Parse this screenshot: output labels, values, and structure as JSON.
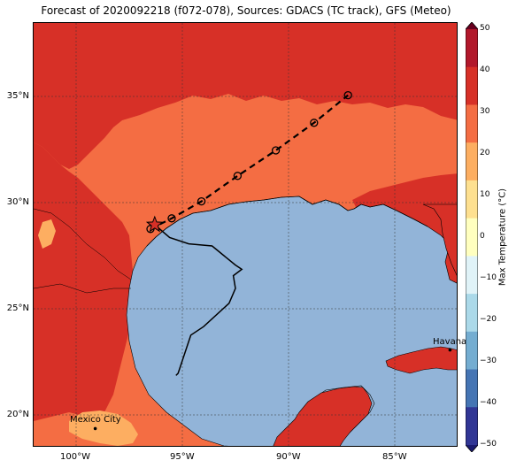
{
  "title": "Forecast of 2020092218 (f072-078), Sources: GDACS (TC track), GFS (Meteo)",
  "map": {
    "lat_labels": [
      "35°N",
      "30°N",
      "25°N",
      "20°N"
    ],
    "lon_labels": [
      "100°W",
      "95°W",
      "90°W",
      "85°W"
    ],
    "cities": [
      {
        "name": "Mexico City"
      },
      {
        "name": "Havana"
      }
    ],
    "colors": {
      "ocean": "#92b4d8",
      "land_30_40": "#d73027",
      "land_20_30": "#f46d43",
      "land_10_20": "#fdae61",
      "track_forecast": "#000000",
      "track_past": "#000000",
      "current_position_marker": "#d73027"
    },
    "track": {
      "forecast_positions": [
        {
          "lon": -96.5,
          "lat": 28.8
        },
        {
          "lon": -95.5,
          "lat": 29.3
        },
        {
          "lon": -94.1,
          "lat": 30.1
        },
        {
          "lon": -92.4,
          "lat": 31.3
        },
        {
          "lon": -90.6,
          "lat": 32.5
        },
        {
          "lon": -88.8,
          "lat": 33.8
        },
        {
          "lon": -87.2,
          "lat": 35.1
        }
      ],
      "current_position": {
        "lon": -96.3,
        "lat": 29.0
      },
      "past_track": [
        {
          "lon": -96.3,
          "lat": 29.0
        },
        {
          "lon": -95.6,
          "lat": 28.4
        },
        {
          "lon": -94.7,
          "lat": 28.1
        },
        {
          "lon": -93.6,
          "lat": 28.0
        },
        {
          "lon": -92.5,
          "lat": 27.1
        },
        {
          "lon": -92.2,
          "lat": 26.9
        },
        {
          "lon": -92.6,
          "lat": 26.6
        },
        {
          "lon": -92.5,
          "lat": 26.0
        },
        {
          "lon": -92.8,
          "lat": 25.3
        },
        {
          "lon": -94.0,
          "lat": 24.2
        },
        {
          "lon": -94.6,
          "lat": 23.8
        },
        {
          "lon": -95.2,
          "lat": 22.0
        },
        {
          "lon": -95.3,
          "lat": 21.9
        }
      ]
    }
  },
  "colorbar": {
    "label": "Max Temperature (°C)",
    "ticks": [
      "50",
      "40",
      "30",
      "20",
      "10",
      "0",
      "−10",
      "−20",
      "−30",
      "−40",
      "−50"
    ],
    "colors": [
      "#67001f",
      "#b2182b",
      "#d73027",
      "#f46d43",
      "#fdae61",
      "#fee090",
      "#ffffbf",
      "#e0f3f8",
      "#abd9e9",
      "#74add1",
      "#4575b4",
      "#313695",
      "#1a1a6e"
    ]
  }
}
